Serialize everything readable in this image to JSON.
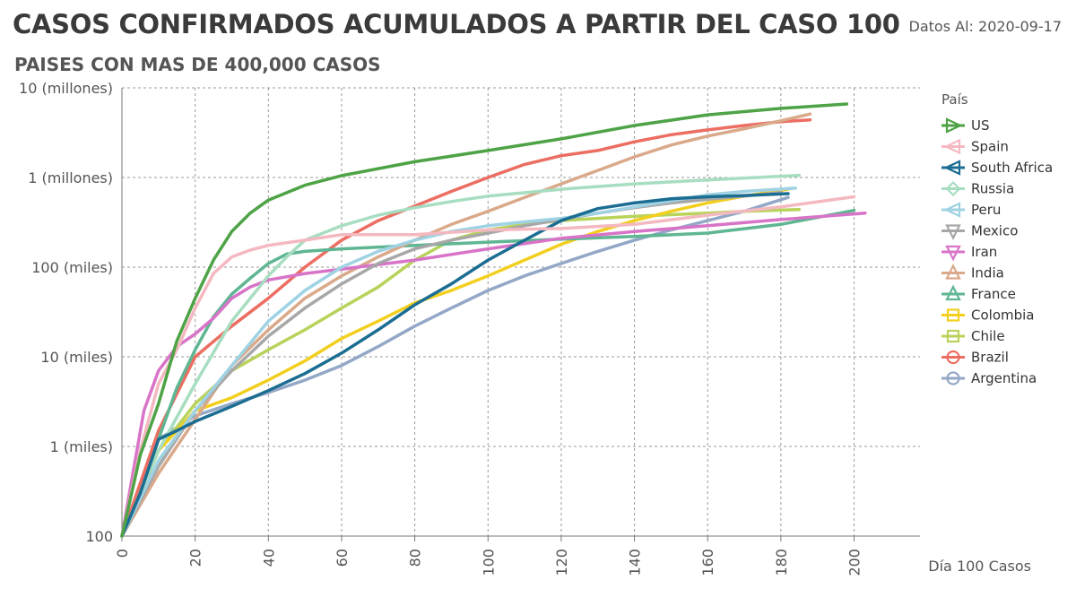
{
  "header": {
    "title": "CASOS CONFIRMADOS ACUMULADOS A PARTIR DEL CASO 100",
    "subtitle": "PAISES CON MAS DE 400,000 CASOS",
    "data_date": "Datos Al: 2020-09-17"
  },
  "chart_data": {
    "type": "line",
    "title": "CASOS CONFIRMADOS ACUMULADOS A PARTIR DEL CASO 100",
    "subtitle": "PAISES CON MAS DE 400,000 CASOS",
    "xlabel": "Día 100 Casos",
    "ylabel": "",
    "yscale": "log",
    "xlim": [
      0,
      218
    ],
    "ylim": [
      100,
      10000000
    ],
    "x_ticks": [
      0,
      20,
      40,
      60,
      80,
      100,
      120,
      140,
      160,
      180,
      200
    ],
    "y_ticks": [
      {
        "value": 100,
        "label": "100"
      },
      {
        "value": 1000,
        "label": "1 (miles)"
      },
      {
        "value": 10000,
        "label": "10 (miles)"
      },
      {
        "value": 100000,
        "label": "100 (miles)"
      },
      {
        "value": 1000000,
        "label": "1 (millones)"
      },
      {
        "value": 10000000,
        "label": "10 (millones)"
      }
    ],
    "grid": true,
    "legend_title": "País",
    "legend_position": "right",
    "series": [
      {
        "name": "US",
        "color": "#4ea346",
        "marker": "triangle-right",
        "x": [
          0,
          5,
          10,
          15,
          20,
          25,
          30,
          35,
          40,
          50,
          60,
          80,
          100,
          120,
          140,
          160,
          180,
          198
        ],
        "y": [
          100,
          800,
          3000,
          15000,
          45000,
          120000,
          250000,
          400000,
          560000,
          820000,
          1050000,
          1500000,
          2000000,
          2700000,
          3800000,
          5000000,
          5900000,
          6600000
        ]
      },
      {
        "name": "Spain",
        "color": "#f4b8c0",
        "marker": "triangle-left",
        "x": [
          0,
          5,
          10,
          15,
          20,
          25,
          30,
          35,
          40,
          50,
          60,
          80,
          100,
          120,
          140,
          160,
          180,
          200
        ],
        "y": [
          100,
          900,
          5000,
          12000,
          35000,
          85000,
          130000,
          155000,
          175000,
          200000,
          230000,
          230000,
          260000,
          270000,
          300000,
          380000,
          470000,
          610000
        ]
      },
      {
        "name": "South Africa",
        "color": "#1b6d92",
        "marker": "triangle-left",
        "x": [
          0,
          5,
          10,
          15,
          20,
          30,
          40,
          50,
          60,
          70,
          80,
          90,
          100,
          110,
          120,
          130,
          140,
          150,
          160,
          170,
          182
        ],
        "y": [
          100,
          300,
          1200,
          1500,
          1900,
          2800,
          4200,
          6500,
          11000,
          20000,
          38000,
          65000,
          120000,
          200000,
          330000,
          450000,
          520000,
          580000,
          610000,
          630000,
          660000
        ]
      },
      {
        "name": "Russia",
        "color": "#a7ddc0",
        "marker": "diamond",
        "x": [
          0,
          10,
          20,
          30,
          40,
          45,
          50,
          60,
          70,
          80,
          90,
          100,
          120,
          140,
          160,
          185
        ],
        "y": [
          100,
          900,
          5000,
          25000,
          80000,
          130000,
          200000,
          290000,
          380000,
          460000,
          540000,
          620000,
          740000,
          850000,
          940000,
          1060000
        ]
      },
      {
        "name": "Peru",
        "color": "#9fd2e3",
        "marker": "triangle-left",
        "x": [
          0,
          10,
          20,
          30,
          40,
          50,
          60,
          70,
          80,
          90,
          100,
          110,
          120,
          130,
          140,
          150,
          160,
          170,
          184
        ],
        "y": [
          100,
          700,
          2500,
          8000,
          25000,
          55000,
          100000,
          150000,
          200000,
          250000,
          290000,
          320000,
          350000,
          400000,
          470000,
          550000,
          640000,
          700000,
          760000
        ]
      },
      {
        "name": "Mexico",
        "color": "#a7a7a7",
        "marker": "triangle-down",
        "x": [
          0,
          10,
          20,
          30,
          40,
          50,
          60,
          70,
          80,
          90,
          100,
          110,
          120,
          130,
          140,
          150,
          160,
          170,
          180
        ],
        "y": [
          100,
          600,
          2500,
          7000,
          17000,
          35000,
          65000,
          110000,
          160000,
          200000,
          240000,
          290000,
          340000,
          400000,
          460000,
          520000,
          570000,
          620000,
          680000
        ]
      },
      {
        "name": "Iran",
        "color": "#d874c7",
        "marker": "triangle-down",
        "x": [
          0,
          3,
          6,
          10,
          15,
          20,
          25,
          30,
          35,
          40,
          50,
          60,
          80,
          100,
          120,
          140,
          160,
          180,
          203
        ],
        "y": [
          100,
          500,
          2500,
          7000,
          13000,
          18000,
          27000,
          45000,
          60000,
          72000,
          85000,
          95000,
          120000,
          160000,
          210000,
          250000,
          290000,
          340000,
          400000
        ]
      },
      {
        "name": "India",
        "color": "#d9a98a",
        "marker": "triangle-up",
        "x": [
          0,
          10,
          20,
          30,
          40,
          50,
          60,
          70,
          80,
          90,
          100,
          110,
          120,
          130,
          140,
          150,
          160,
          170,
          180,
          188
        ],
        "y": [
          100,
          500,
          2000,
          8000,
          20000,
          45000,
          80000,
          130000,
          200000,
          300000,
          420000,
          600000,
          850000,
          1200000,
          1700000,
          2300000,
          2900000,
          3500000,
          4300000,
          5100000
        ]
      },
      {
        "name": "France",
        "color": "#5fb692",
        "marker": "triangle-up",
        "x": [
          0,
          5,
          10,
          15,
          20,
          25,
          30,
          35,
          40,
          45,
          50,
          60,
          80,
          100,
          120,
          140,
          160,
          180,
          200
        ],
        "y": [
          100,
          300,
          1200,
          4500,
          12000,
          28000,
          50000,
          75000,
          110000,
          140000,
          150000,
          160000,
          175000,
          190000,
          205000,
          220000,
          240000,
          300000,
          430000
        ]
      },
      {
        "name": "Colombia",
        "color": "#f2cf1f",
        "marker": "square",
        "x": [
          0,
          10,
          20,
          30,
          40,
          50,
          60,
          70,
          80,
          90,
          100,
          110,
          120,
          130,
          140,
          150,
          160,
          170,
          182
        ],
        "y": [
          100,
          900,
          2500,
          3500,
          5500,
          9000,
          16000,
          25000,
          40000,
          55000,
          80000,
          120000,
          180000,
          250000,
          330000,
          420000,
          520000,
          620000,
          740000
        ]
      },
      {
        "name": "Chile",
        "color": "#b7d35a",
        "marker": "square",
        "x": [
          0,
          10,
          20,
          30,
          40,
          50,
          60,
          70,
          80,
          90,
          100,
          110,
          120,
          130,
          140,
          150,
          160,
          170,
          185
        ],
        "y": [
          100,
          900,
          3000,
          7000,
          12000,
          20000,
          35000,
          60000,
          120000,
          200000,
          260000,
          300000,
          330000,
          350000,
          370000,
          385000,
          400000,
          420000,
          440000
        ]
      },
      {
        "name": "Brazil",
        "color": "#ec6d62",
        "marker": "circle",
        "x": [
          0,
          10,
          20,
          30,
          40,
          50,
          60,
          70,
          80,
          90,
          100,
          110,
          120,
          130,
          140,
          150,
          160,
          170,
          180,
          188
        ],
        "y": [
          100,
          1500,
          10000,
          22000,
          45000,
          100000,
          200000,
          330000,
          480000,
          700000,
          1000000,
          1400000,
          1750000,
          2000000,
          2500000,
          3000000,
          3400000,
          3800000,
          4200000,
          4400000
        ]
      },
      {
        "name": "Argentina",
        "color": "#93a7c6",
        "marker": "circle",
        "x": [
          0,
          10,
          20,
          30,
          40,
          50,
          60,
          70,
          80,
          90,
          100,
          110,
          120,
          130,
          140,
          150,
          160,
          170,
          182
        ],
        "y": [
          100,
          1200,
          2200,
          3000,
          4000,
          5500,
          8000,
          13000,
          22000,
          35000,
          55000,
          80000,
          110000,
          150000,
          200000,
          260000,
          330000,
          420000,
          600000
        ]
      }
    ]
  }
}
